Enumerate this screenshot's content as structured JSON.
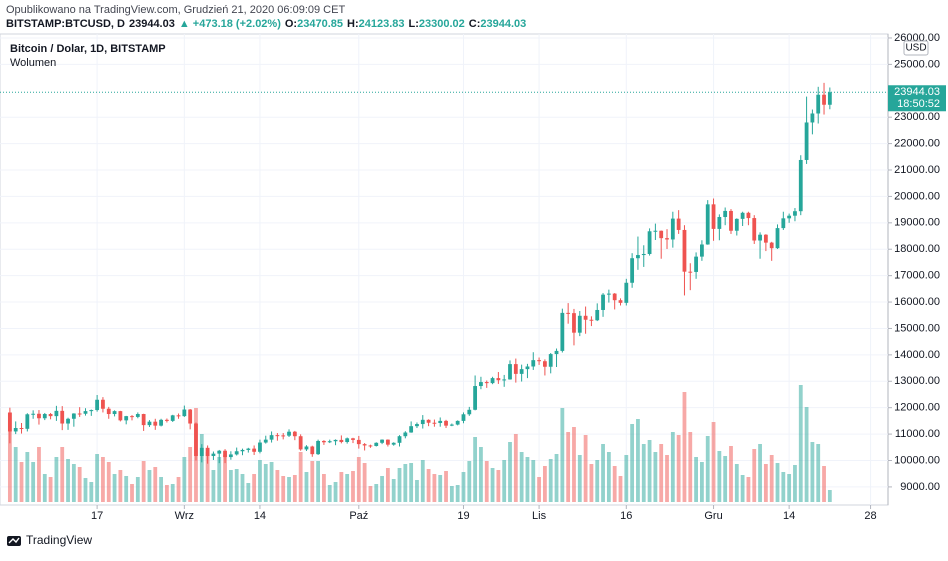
{
  "header": {
    "published": "Opublikowano na TradingView.com, Grudzień 21, 2020 06:09:09 CET",
    "footer": "TradingView"
  },
  "chart_data": {
    "type": "candlestick",
    "symbol": "BITSTAMP:BTCUSD, D",
    "change": "▲ +473.18 (+2.02%)",
    "ohlc_labels": [
      "O:",
      "H:",
      "L:",
      "C:"
    ],
    "title": "Bitcoin / Dolar, 1D, BITSTAMP",
    "volume_name": "Wolumen",
    "currency": "USD",
    "countdown": "18:50:52",
    "up_color": "#26a69a",
    "down_color": "#ef5350",
    "grid": true,
    "xlim": [
      -1.7,
      151
    ],
    "ylim": [
      8315,
      26150
    ],
    "volume_lim": [
      0,
      30000
    ],
    "xticks": [
      {
        "value": 15,
        "label": "17"
      },
      {
        "value": 30,
        "label": "Wrz"
      },
      {
        "value": 43,
        "label": "14"
      },
      {
        "value": 60,
        "label": "Paź"
      },
      {
        "value": 78,
        "label": "19"
      },
      {
        "value": 91,
        "label": "Lis"
      },
      {
        "value": 106,
        "label": "16"
      },
      {
        "value": 121,
        "label": "Gru"
      },
      {
        "value": 134,
        "label": "14"
      },
      {
        "value": 148,
        "label": "28"
      }
    ],
    "yticks": [
      {
        "value": 9000,
        "label": "9000.00"
      },
      {
        "value": 10000,
        "label": "10000.00"
      },
      {
        "value": 11000,
        "label": "11000.00"
      },
      {
        "value": 12000,
        "label": "12000.00"
      },
      {
        "value": 13000,
        "label": "13000.00"
      },
      {
        "value": 14000,
        "label": "14000.00"
      },
      {
        "value": 15000,
        "label": "15000.00"
      },
      {
        "value": 16000,
        "label": "16000.00"
      },
      {
        "value": 17000,
        "label": "17000.00"
      },
      {
        "value": 18000,
        "label": "18000.00"
      },
      {
        "value": 19000,
        "label": "19000.00"
      },
      {
        "value": 20000,
        "label": "20000.00"
      },
      {
        "value": 21000,
        "label": "21000.00"
      },
      {
        "value": 22000,
        "label": "22000.00"
      },
      {
        "value": 23000,
        "label": "23000.00"
      },
      {
        "value": 25000,
        "label": "25000.00"
      },
      {
        "value": 26000,
        "label": "26000.00"
      }
    ],
    "open": [
      11800,
      11100,
      11230,
      11200,
      11750,
      11770,
      11600,
      11760,
      11680,
      11880,
      11400,
      11580,
      11780,
      11770,
      11870,
      11910,
      12300,
      11960,
      11760,
      11870,
      11520,
      11680,
      11650,
      11760,
      11340,
      11470,
      11320,
      11540,
      11500,
      11710,
      11680,
      11930,
      11400,
      10170,
      10480,
      10170,
      10260,
      10370,
      10130,
      10230,
      10350,
      10400,
      10450,
      10330,
      10680,
      10790,
      10960,
      10950,
      10940,
      11090,
      10920,
      10420,
      10530,
      10240,
      10740,
      10690,
      10730,
      10780,
      10700,
      10840,
      10780,
      10620,
      10570,
      10550,
      10670,
      10790,
      10600,
      10670,
      10920,
      11060,
      11300,
      11380,
      11540,
      11430,
      11420,
      11500,
      11320,
      11360,
      11500,
      11750,
      11920,
      12820,
      12970,
      12930,
      13120,
      13040,
      13070,
      13650,
      13280,
      13460,
      13560,
      13800,
      13760,
      13550,
      14030,
      14150,
      15590,
      15580,
      14840,
      15480,
      15330,
      15310,
      15700,
      16280,
      16320,
      16070,
      15970,
      16730,
      17660,
      17780,
      17820,
      18680,
      18700,
      18420,
      18370,
      19160,
      18730,
      17150,
      17140,
      17720,
      18180,
      19700,
      18770,
      19220,
      19450,
      18700,
      19150,
      19380,
      19180,
      18330,
      18550,
      18250,
      18040,
      18800,
      19170,
      19270,
      19440,
      21380,
      22800,
      23140,
      23850,
      23470.85
    ],
    "high": [
      12000,
      11480,
      11420,
      11790,
      11900,
      11910,
      11800,
      11800,
      12070,
      12060,
      11620,
      11790,
      12020,
      11980,
      11930,
      12480,
      12400,
      12030,
      11900,
      11880,
      11690,
      11720,
      11820,
      11770,
      11530,
      11580,
      11580,
      11590,
      11730,
      11780,
      12080,
      11950,
      11440,
      10620,
      10570,
      10340,
      10400,
      10430,
      10350,
      10490,
      10450,
      10480,
      10570,
      10790,
      10940,
      11100,
      11040,
      11040,
      11180,
      11120,
      10990,
      10580,
      10560,
      10790,
      10770,
      10790,
      10800,
      10950,
      10870,
      10860,
      10930,
      10660,
      10600,
      10690,
      10800,
      10800,
      10690,
      10960,
      11110,
      11480,
      11440,
      11720,
      11560,
      11550,
      11630,
      11540,
      11400,
      11520,
      11820,
      12030,
      13220,
      13170,
      13030,
      13170,
      13350,
      13240,
      13790,
      13860,
      13630,
      13660,
      14100,
      13900,
      13830,
      14070,
      14240,
      15750,
      15960,
      15740,
      15660,
      15830,
      15460,
      15950,
      16340,
      16470,
      16340,
      16140,
      16880,
      17850,
      18480,
      18150,
      18790,
      18970,
      18710,
      18760,
      19420,
      19480,
      18910,
      17470,
      17880,
      18340,
      19860,
      19920,
      19320,
      19580,
      19520,
      19170,
      19420,
      19420,
      19290,
      18640,
      18570,
      18280,
      18940,
      19420,
      19350,
      19560,
      21560,
      23780,
      23290,
      24150,
      24300,
      24123.83
    ],
    "low": [
      10650,
      11000,
      11020,
      11100,
      11580,
      11360,
      11530,
      11560,
      11500,
      11150,
      11160,
      11280,
      11650,
      11700,
      11690,
      11850,
      11820,
      11580,
      11670,
      11480,
      11370,
      11520,
      11600,
      11120,
      11270,
      11160,
      11290,
      11440,
      11460,
      11580,
      11650,
      11180,
      10000,
      9930,
      9880,
      10020,
      9900,
      9900,
      10030,
      10190,
      10200,
      10300,
      10210,
      10270,
      10640,
      10680,
      10750,
      10800,
      10890,
      10770,
      10370,
      10360,
      10140,
      10210,
      10590,
      10660,
      10580,
      10650,
      10640,
      10660,
      10450,
      10380,
      10480,
      10530,
      10620,
      10530,
      10560,
      10530,
      10840,
      11050,
      11230,
      11210,
      11300,
      11280,
      11280,
      11230,
      11300,
      11330,
      11410,
      11690,
      11900,
      12700,
      12750,
      12890,
      12900,
      12790,
      13060,
      12950,
      12990,
      13120,
      13430,
      13620,
      13220,
      13300,
      13540,
      14090,
      15180,
      14360,
      14710,
      14800,
      15090,
      15280,
      15440,
      15980,
      15720,
      15870,
      15870,
      16540,
      17220,
      17330,
      17760,
      18350,
      17640,
      18010,
      18060,
      18580,
      16250,
      16450,
      16880,
      17560,
      18170,
      18320,
      18340,
      18910,
      18580,
      18520,
      18880,
      18910,
      18200,
      17640,
      17930,
      17560,
      18010,
      18730,
      19000,
      19060,
      19290,
      21230,
      22350,
      22760,
      23100,
      23300.02
    ],
    "close": [
      11100,
      11230,
      11200,
      11750,
      11770,
      11600,
      11760,
      11680,
      11880,
      11400,
      11580,
      11780,
      11770,
      11870,
      11910,
      12300,
      11960,
      11760,
      11870,
      11520,
      11680,
      11650,
      11760,
      11340,
      11470,
      11320,
      11540,
      11500,
      11710,
      11680,
      11930,
      11400,
      10170,
      10480,
      10170,
      10260,
      10370,
      10130,
      10230,
      10350,
      10400,
      10450,
      10330,
      10680,
      10790,
      10960,
      10950,
      10940,
      11090,
      10920,
      10420,
      10530,
      10240,
      10740,
      10690,
      10730,
      10780,
      10700,
      10840,
      10780,
      10620,
      10570,
      10550,
      10670,
      10790,
      10600,
      10670,
      10920,
      11060,
      11300,
      11380,
      11540,
      11430,
      11420,
      11500,
      11320,
      11360,
      11500,
      11750,
      11920,
      12820,
      12970,
      12930,
      13120,
      13040,
      13070,
      13650,
      13280,
      13460,
      13560,
      13800,
      13760,
      13550,
      14030,
      14150,
      15590,
      15580,
      14840,
      15480,
      15330,
      15310,
      15700,
      16280,
      16320,
      16070,
      15970,
      16730,
      17660,
      17780,
      17820,
      18680,
      18700,
      18420,
      18370,
      19160,
      18730,
      17150,
      17140,
      17720,
      18180,
      19700,
      18770,
      19220,
      19450,
      18700,
      19150,
      19380,
      19180,
      18330,
      18550,
      18250,
      18040,
      18800,
      19170,
      19270,
      19440,
      21380,
      22800,
      23140,
      23850,
      23470.85,
      23944.03
    ],
    "volume": [
      9000,
      5500,
      4000,
      5000,
      4000,
      5500,
      2800,
      2500,
      4500,
      5500,
      4300,
      3800,
      3500,
      2400,
      2000,
      4800,
      4500,
      4000,
      2800,
      3200,
      2600,
      1800,
      2500,
      4100,
      3200,
      3500,
      2500,
      1700,
      1800,
      2500,
      4500,
      5500,
      9400,
      6800,
      5000,
      3200,
      4500,
      4700,
      3200,
      3300,
      2800,
      1900,
      2800,
      4200,
      3800,
      4000,
      3200,
      2600,
      2500,
      2700,
      5000,
      3000,
      4100,
      4100,
      2800,
      1700,
      2000,
      3000,
      2800,
      3100,
      4500,
      3900,
      1600,
      1800,
      2600,
      3400,
      2300,
      3400,
      3800,
      3900,
      2200,
      4200,
      3300,
      2800,
      2700,
      3100,
      1600,
      1700,
      3000,
      4100,
      6500,
      5500,
      4100,
      3400,
      3200,
      4200,
      6000,
      6800,
      5000,
      4500,
      4200,
      2500,
      3600,
      4300,
      4800,
      9400,
      7000,
      7500,
      4700,
      6700,
      3800,
      4200,
      5800,
      5000,
      3600,
      2600,
      4700,
      7800,
      8300,
      5800,
      6200,
      5000,
      5800,
      4700,
      7000,
      6700,
      11000,
      7000,
      4500,
      4000,
      6600,
      8000,
      5100,
      4600,
      5600,
      3800,
      2700,
      2500,
      5300,
      5800,
      3800,
      4700,
      3900,
      3000,
      2800,
      3700,
      11700,
      9500,
      6000,
      5800,
      3600,
      1200
    ]
  }
}
